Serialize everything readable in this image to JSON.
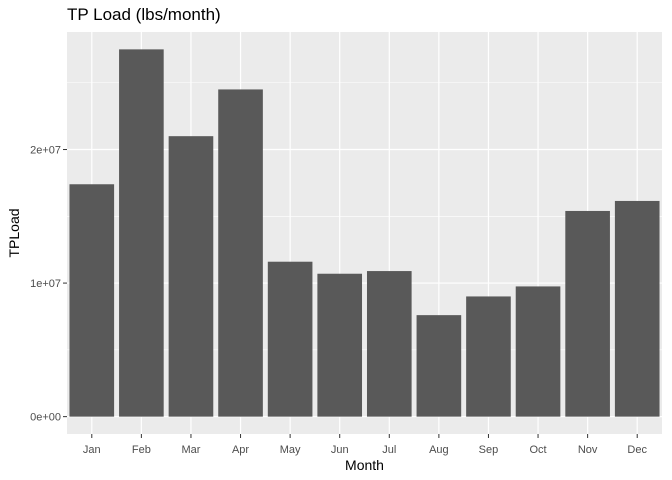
{
  "chart_data": {
    "type": "bar",
    "title": "TP Load (lbs/month)",
    "xlabel": "Month",
    "ylabel": "TPLoad",
    "categories": [
      "Jan",
      "Feb",
      "Mar",
      "Apr",
      "May",
      "Jun",
      "Jul",
      "Aug",
      "Sep",
      "Oct",
      "Nov",
      "Dec"
    ],
    "values": [
      17400000,
      27500000,
      21000000,
      24500000,
      11600000,
      10700000,
      10900000,
      7600000,
      9000000,
      9750000,
      15400000,
      16150000
    ],
    "ylim": [
      -1300000,
      28800000
    ],
    "yticks": [
      0,
      10000000,
      20000000
    ],
    "ytick_labels": [
      "0e+00",
      "1e+07",
      "2e+07"
    ],
    "grid": true,
    "colors": {
      "panel": "#ebebeb",
      "bar": "#595959",
      "grid": "#ffffff"
    }
  }
}
